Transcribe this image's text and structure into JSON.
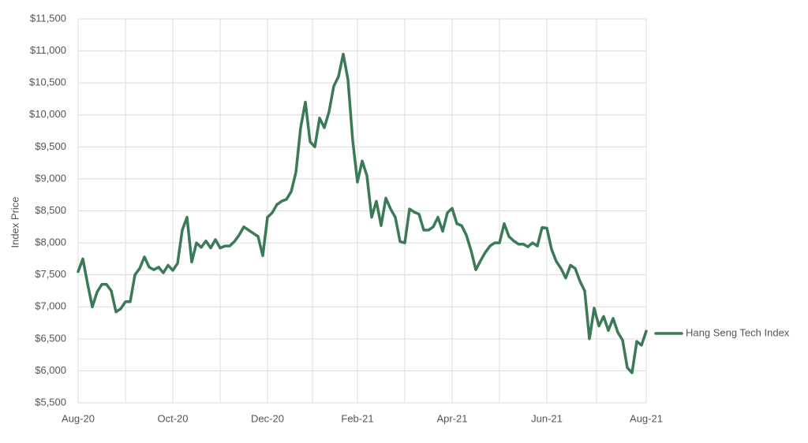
{
  "chart_data": {
    "type": "line",
    "y_label": "Index Price",
    "categories": [
      "Aug-20",
      null,
      null,
      null,
      null,
      null,
      null,
      null,
      null,
      null,
      null,
      null,
      null,
      null,
      null,
      null,
      null,
      null,
      null,
      null,
      "Oct-20",
      null,
      null,
      null,
      null,
      null,
      null,
      null,
      null,
      null,
      null,
      null,
      null,
      null,
      null,
      null,
      null,
      null,
      null,
      null,
      "Dec-20",
      null,
      null,
      null,
      null,
      null,
      null,
      null,
      null,
      null,
      null,
      null,
      null,
      null,
      null,
      null,
      null,
      null,
      null,
      "Feb-21",
      null,
      null,
      null,
      null,
      null,
      null,
      null,
      null,
      null,
      null,
      null,
      null,
      null,
      null,
      null,
      null,
      null,
      null,
      null,
      "Apr-21",
      null,
      null,
      null,
      null,
      null,
      null,
      null,
      null,
      null,
      null,
      null,
      null,
      null,
      null,
      null,
      null,
      null,
      null,
      null,
      "Jun-21",
      null,
      null,
      null,
      null,
      null,
      null,
      null,
      null,
      null,
      null,
      null,
      null,
      null,
      null,
      null,
      null,
      null,
      null,
      null,
      null,
      "Aug-21"
    ],
    "series": [
      {
        "name": "Hang Seng Tech Index",
        "color": "#3b7a57",
        "values": [
          7550,
          7750,
          7360,
          7000,
          7230,
          7350,
          7350,
          7250,
          6920,
          6970,
          7080,
          7080,
          7500,
          7600,
          7780,
          7620,
          7580,
          7620,
          7530,
          7650,
          7570,
          7680,
          8200,
          8400,
          7700,
          8000,
          7930,
          8030,
          7920,
          8050,
          7920,
          7950,
          7950,
          8020,
          8120,
          8250,
          8200,
          8150,
          8100,
          7800,
          8400,
          8470,
          8600,
          8650,
          8680,
          8800,
          9100,
          9800,
          10200,
          9580,
          9500,
          9950,
          9800,
          10050,
          10450,
          10600,
          10950,
          10550,
          9600,
          8950,
          9280,
          9050,
          8400,
          8650,
          8270,
          8700,
          8530,
          8400,
          8020,
          8000,
          8530,
          8480,
          8450,
          8200,
          8200,
          8250,
          8400,
          8180,
          8470,
          8540,
          8300,
          8270,
          8120,
          7880,
          7580,
          7720,
          7850,
          7950,
          8000,
          8000,
          8300,
          8100,
          8030,
          7980,
          7980,
          7940,
          8000,
          7950,
          8240,
          8230,
          7900,
          7710,
          7600,
          7450,
          7650,
          7600,
          7400,
          7250,
          6500,
          6980,
          6700,
          6850,
          6630,
          6820,
          6600,
          6480,
          6050,
          5970,
          6460,
          6400,
          6620
        ]
      }
    ],
    "ylim": [
      5500,
      11500
    ],
    "yticks": [
      {
        "value": 5500,
        "label": "$5,500"
      },
      {
        "value": 6000,
        "label": "$6,000"
      },
      {
        "value": 6500,
        "label": "$6,500"
      },
      {
        "value": 7000,
        "label": "$7,000"
      },
      {
        "value": 7500,
        "label": "$7,500"
      },
      {
        "value": 8000,
        "label": "$8,000"
      },
      {
        "value": 8500,
        "label": "$8,500"
      },
      {
        "value": 9000,
        "label": "$9,000"
      },
      {
        "value": 9500,
        "label": "$9,500"
      },
      {
        "value": 10000,
        "label": "$10,000"
      },
      {
        "value": 10500,
        "label": "$10,500"
      },
      {
        "value": 11000,
        "label": "$11,000"
      },
      {
        "value": 11500,
        "label": "$11,500"
      }
    ],
    "grid": true,
    "legend": "right"
  }
}
